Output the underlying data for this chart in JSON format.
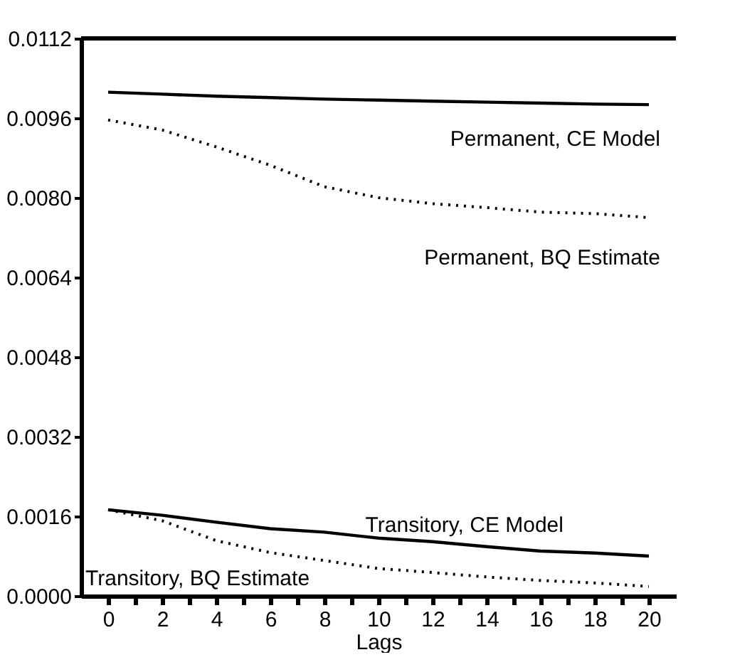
{
  "chart_data": {
    "type": "line",
    "xlabel": "Lags",
    "x": [
      0,
      2,
      4,
      6,
      8,
      10,
      12,
      14,
      16,
      18,
      20
    ],
    "xlim": [
      -1,
      21
    ],
    "xticks": [
      0,
      {
        "value": 1,
        "label": null
      },
      2,
      {
        "value": 3,
        "label": null
      },
      4,
      {
        "value": 5,
        "label": null
      },
      6,
      {
        "value": 7,
        "label": null
      },
      8,
      {
        "value": 9,
        "label": null
      },
      10,
      {
        "value": 11,
        "label": null
      },
      12,
      {
        "value": 13,
        "label": null
      },
      14,
      {
        "value": 15,
        "label": null
      },
      16,
      {
        "value": 17,
        "label": null
      },
      18,
      {
        "value": 19,
        "label": null
      },
      20
    ],
    "ylim": [
      0,
      0.0112
    ],
    "yticks": [
      {
        "value": 0,
        "label": "0.0000"
      },
      {
        "value": 0.0016,
        "label": "0.0016"
      },
      {
        "value": 0.0032,
        "label": "0.0032"
      },
      {
        "value": 0.0048,
        "label": "0.0048"
      },
      {
        "value": 0.0064,
        "label": "0.0064"
      },
      {
        "value": 0.008,
        "label": "0.0080"
      },
      {
        "value": 0.0096,
        "label": "0.0096"
      },
      {
        "value": 0.0112,
        "label": "0.0112"
      }
    ],
    "grid": false,
    "legend": false,
    "marker": "none",
    "series": [
      {
        "name": "Permanent, CE Model",
        "color": "#000000",
        "line_style": "solid",
        "values": [
          0.01012,
          0.01008,
          0.01004,
          0.01001,
          0.00998,
          0.00996,
          0.00994,
          0.00992,
          0.0099,
          0.00988,
          0.00987
        ]
      },
      {
        "name": "Permanent, BQ Estimate",
        "color": "#000000",
        "line_style": "dotted",
        "values": [
          0.00956,
          0.00936,
          0.00902,
          0.00865,
          0.00822,
          0.008,
          0.00788,
          0.0078,
          0.00771,
          0.00768,
          0.0076
        ]
      },
      {
        "name": "Transitory, CE Model",
        "color": "#000000",
        "line_style": "solid",
        "values": [
          0.00173,
          0.00162,
          0.00148,
          0.00135,
          0.00128,
          0.00116,
          0.00109,
          0.00099,
          0.0009,
          0.00086,
          0.0008
        ]
      },
      {
        "name": "Transitory, BQ Estimate",
        "color": "#000000",
        "line_style": "dotted",
        "values": [
          0.00173,
          0.00151,
          0.00111,
          0.00087,
          0.00071,
          0.00055,
          0.00047,
          0.00038,
          0.00031,
          0.00026,
          0.00019
        ]
      }
    ]
  }
}
